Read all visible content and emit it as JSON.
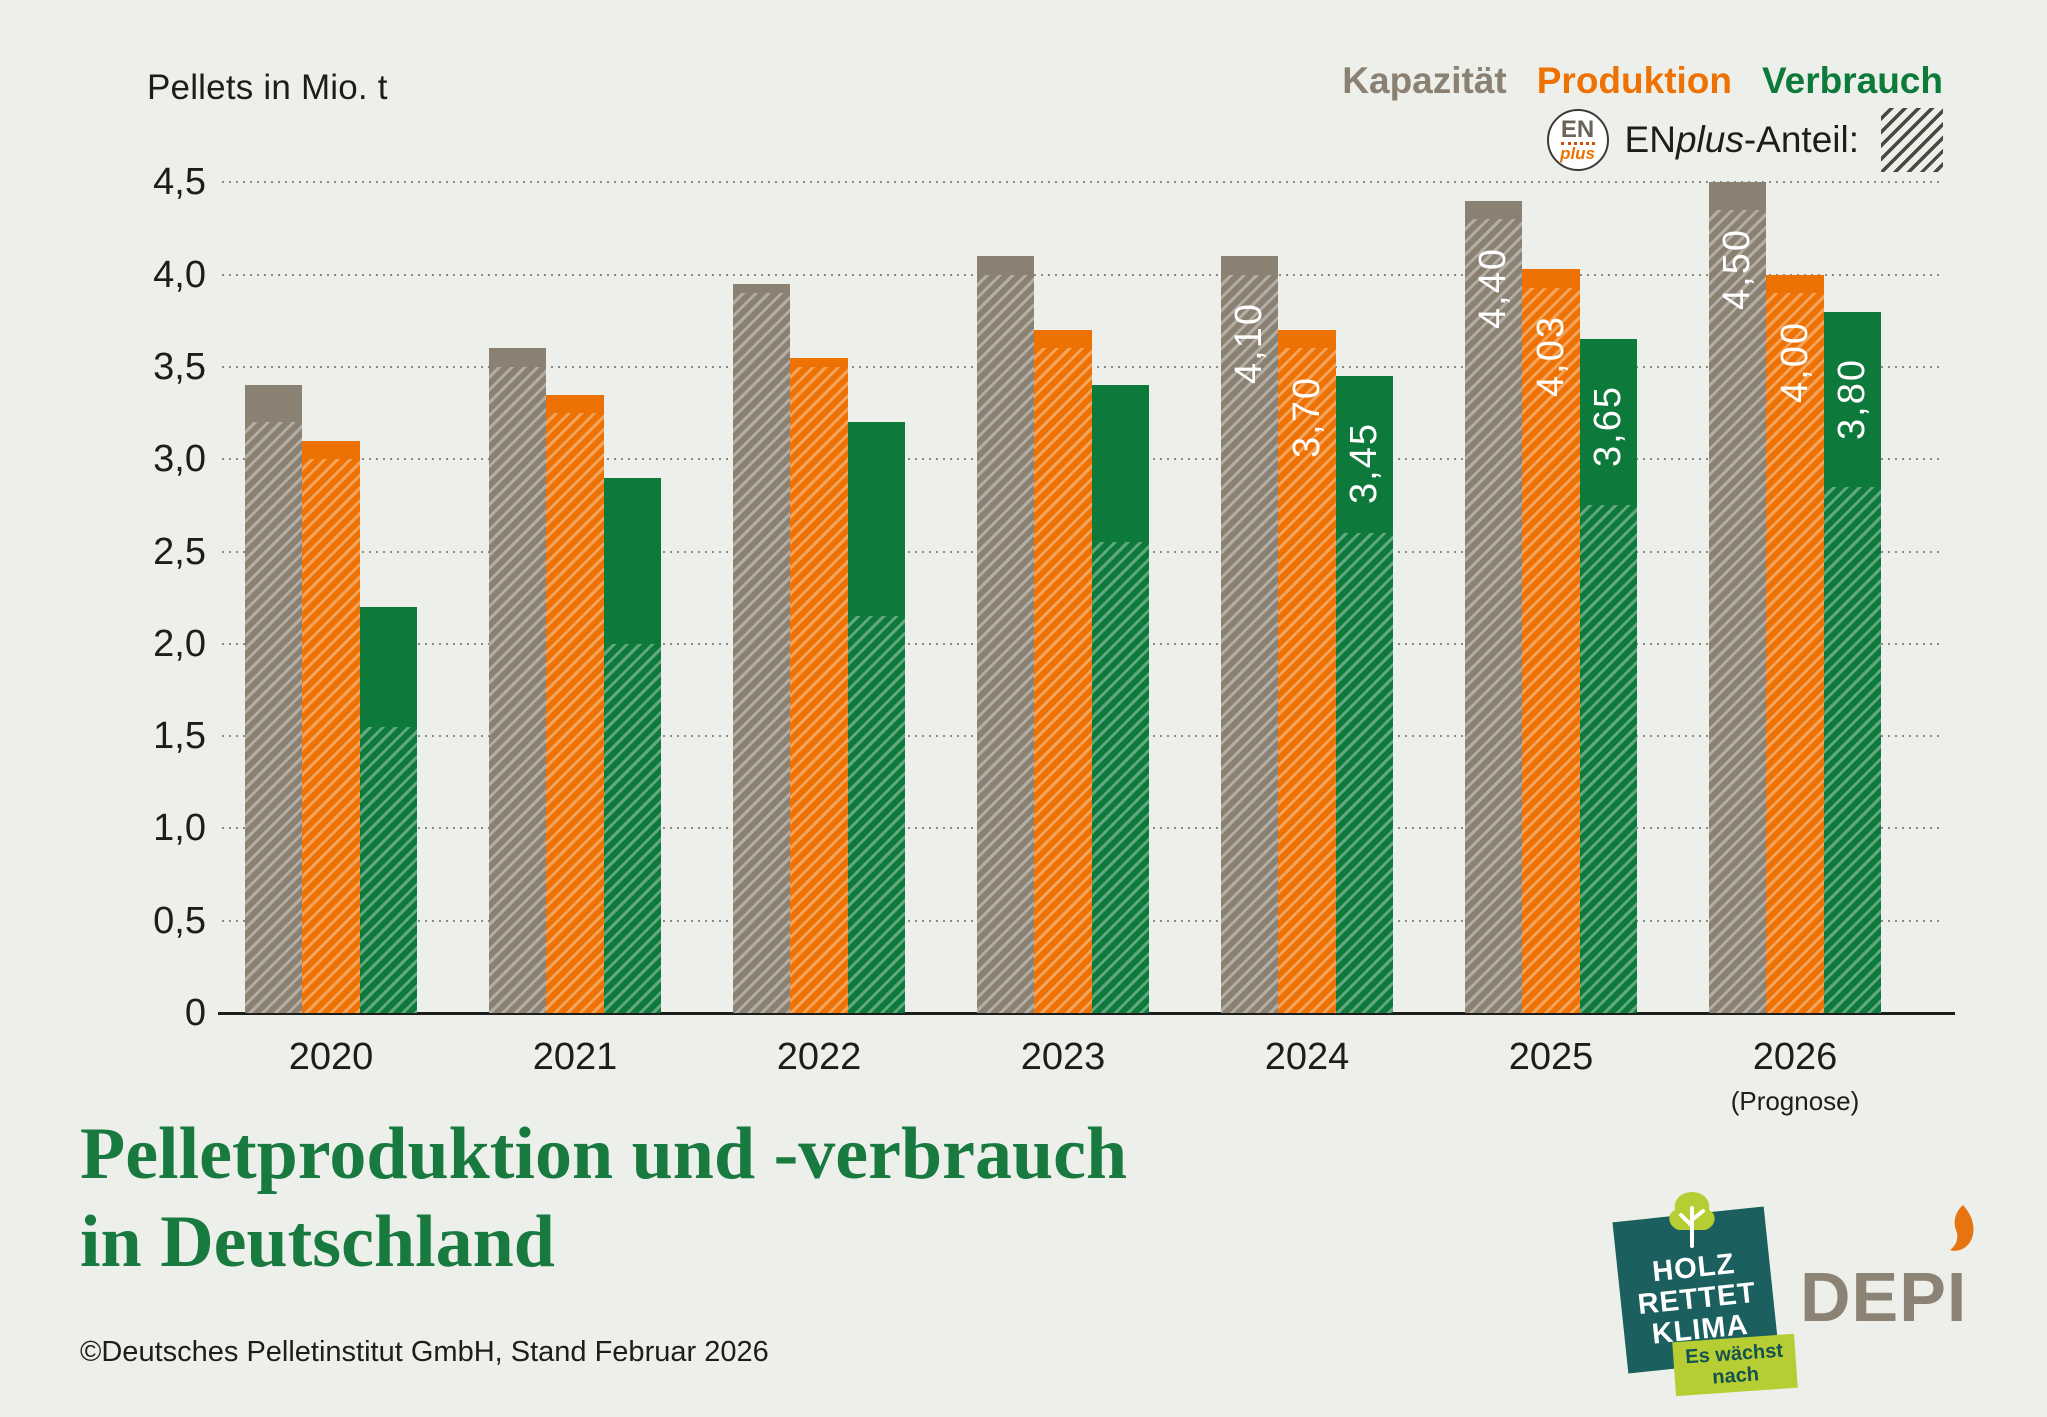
{
  "chart_data": {
    "type": "bar",
    "title": "Pelletproduktion und -verbrauch in Deutschland",
    "axis_title": "Pellets in Mio. t",
    "unit": "Mio. t",
    "grid": "horizontal-dotted",
    "legend_position": "top-right",
    "categories": [
      "2020",
      "2021",
      "2022",
      "2023",
      "2024",
      "2025",
      "2026"
    ],
    "x_note_category": "2026",
    "x_note": "(Prognose)",
    "ylim": [
      0,
      4.5
    ],
    "y_ticks": [
      {
        "v": 0,
        "label": "0"
      },
      {
        "v": 0.5,
        "label": "0,5"
      },
      {
        "v": 1,
        "label": "1,0"
      },
      {
        "v": 1.5,
        "label": "1,5"
      },
      {
        "v": 2,
        "label": "2,0"
      },
      {
        "v": 2.5,
        "label": "2,5"
      },
      {
        "v": 3,
        "label": "3,0"
      },
      {
        "v": 3.5,
        "label": "3,5"
      },
      {
        "v": 4,
        "label": "4,0"
      },
      {
        "v": 4.5,
        "label": "4,5"
      }
    ],
    "series": [
      {
        "name": "Kapazität",
        "color": "#8b8173",
        "values": [
          3.4,
          3.6,
          3.95,
          4.1,
          4.1,
          4.4,
          4.5
        ],
        "enplus_values": [
          3.2,
          3.5,
          3.9,
          4.0,
          4.0,
          4.3,
          4.35
        ],
        "labels": [
          null,
          null,
          null,
          null,
          "4,10",
          "4,40",
          "4,50"
        ]
      },
      {
        "name": "Produktion",
        "color": "#ee7203",
        "values": [
          3.1,
          3.35,
          3.55,
          3.7,
          3.7,
          4.03,
          4.0
        ],
        "enplus_values": [
          3.0,
          3.25,
          3.5,
          3.6,
          3.6,
          3.93,
          3.9
        ],
        "labels": [
          null,
          null,
          null,
          null,
          "3,70",
          "4,03",
          "4,00"
        ]
      },
      {
        "name": "Verbrauch",
        "color": "#0d7a3c",
        "values": [
          2.2,
          2.9,
          3.2,
          3.4,
          3.45,
          3.65,
          3.8
        ],
        "enplus_values": [
          1.55,
          2.0,
          2.15,
          2.55,
          2.6,
          2.75,
          2.85
        ],
        "labels": [
          null,
          null,
          null,
          null,
          "3,45",
          "3,65",
          "3,80"
        ]
      }
    ]
  },
  "enplus_logo": {
    "top": "EN",
    "bottom": "plus"
  },
  "enplus_label": {
    "en": "EN",
    "plus": "plus",
    "rest": "-Anteil:"
  },
  "title": {
    "line1": "Pelletproduktion und -verbrauch",
    "line2": "in Deutschland"
  },
  "footer": {
    "copyright": "©Deutsches Pelletinstitut GmbH, Stand Februar 2026"
  },
  "logos": {
    "holz_rettet_klima": {
      "line1": "HOLZ",
      "line2": "RETTET",
      "line3": "KLIMA",
      "tag_line1": "Es wächst",
      "tag_line2": "nach"
    },
    "depi": {
      "text": "DEPI"
    }
  },
  "colors": {
    "background": "#edf0ea",
    "kapazitaet": "#8b8173",
    "produktion": "#ee7203",
    "verbrauch": "#0d7a3c",
    "title_green": "#187a3f",
    "text_dark": "#1d1d1b",
    "grid_dot": "#8b8b85",
    "hrk_teal": "#1b5f5e",
    "hrk_green": "#b6ce33",
    "depi_gray": "#8d8375",
    "depi_flame": "#e87311"
  }
}
